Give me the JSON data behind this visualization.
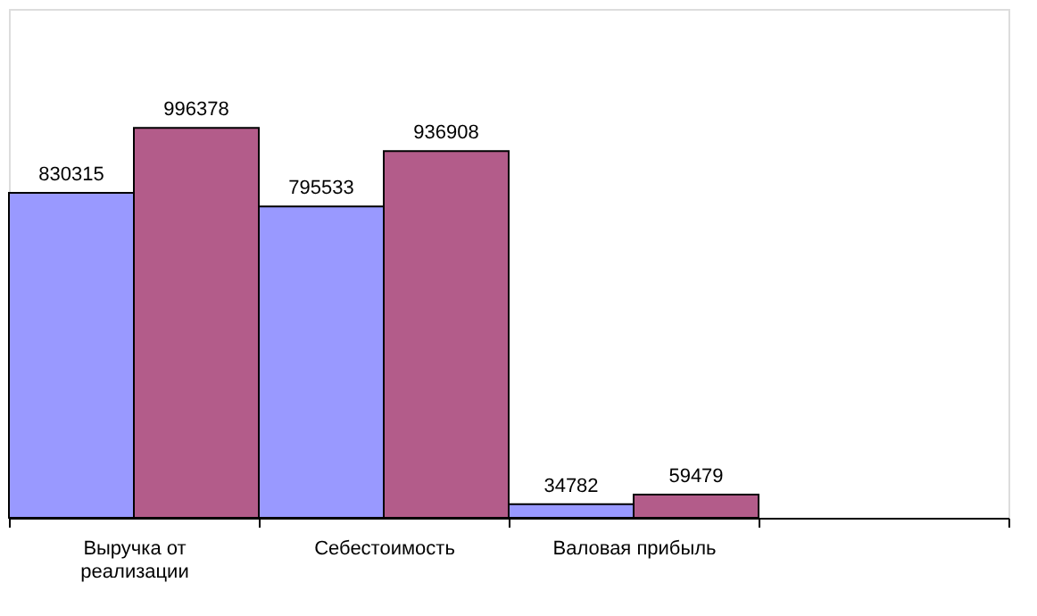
{
  "chart_data": {
    "type": "bar",
    "categories": [
      "Выручка от реализации",
      "Себестоимость",
      "Валовая прибыль",
      null
    ],
    "series": [
      {
        "color": "#9999ff",
        "values": [
          830315,
          795533,
          34782,
          null
        ]
      },
      {
        "color": "#b35c8a",
        "values": [
          996378,
          936908,
          59479,
          null
        ]
      }
    ],
    "ylim": [
      0,
      1300000
    ],
    "data_labels": true
  }
}
